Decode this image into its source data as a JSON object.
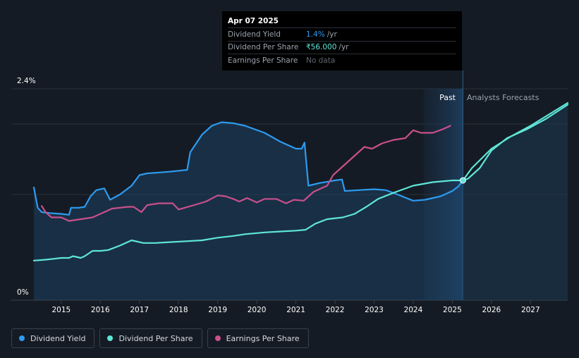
{
  "chart_data": {
    "type": "line",
    "y_axis": {
      "min_label": "0%",
      "max_label": "2.4%",
      "ylim": [
        0,
        2.4
      ]
    },
    "x_axis": {
      "tick_labels": [
        "2015",
        "2016",
        "2017",
        "2018",
        "2019",
        "2020",
        "2021",
        "2022",
        "2023",
        "2024",
        "2025",
        "2026",
        "2027"
      ],
      "xlim": [
        2014.3,
        2027.95
      ]
    },
    "regions": {
      "past_label": "Past",
      "forecast_label": "Analysts Forecasts",
      "divider_x": 2025.27,
      "highlight_start": 2024.27
    },
    "series": [
      {
        "name": "Dividend Yield",
        "color": "#2d9bf0",
        "fill": true,
        "points": [
          [
            2014.3,
            1.28
          ],
          [
            2014.4,
            1.05
          ],
          [
            2014.5,
            1.0
          ],
          [
            2014.7,
            0.99
          ],
          [
            2015.0,
            0.98
          ],
          [
            2015.2,
            0.97
          ],
          [
            2015.25,
            1.05
          ],
          [
            2015.45,
            1.05
          ],
          [
            2015.6,
            1.06
          ],
          [
            2015.75,
            1.18
          ],
          [
            2015.9,
            1.25
          ],
          [
            2016.1,
            1.27
          ],
          [
            2016.25,
            1.14
          ],
          [
            2016.5,
            1.2
          ],
          [
            2016.8,
            1.3
          ],
          [
            2017.0,
            1.42
          ],
          [
            2017.2,
            1.44
          ],
          [
            2017.5,
            1.45
          ],
          [
            2017.8,
            1.46
          ],
          [
            2018.0,
            1.47
          ],
          [
            2018.22,
            1.48
          ],
          [
            2018.3,
            1.68
          ],
          [
            2018.6,
            1.88
          ],
          [
            2018.85,
            1.98
          ],
          [
            2019.1,
            2.02
          ],
          [
            2019.4,
            2.01
          ],
          [
            2019.7,
            1.98
          ],
          [
            2020.2,
            1.9
          ],
          [
            2020.6,
            1.8
          ],
          [
            2021.0,
            1.72
          ],
          [
            2021.15,
            1.72
          ],
          [
            2021.22,
            1.79
          ],
          [
            2021.32,
            1.3
          ],
          [
            2021.6,
            1.33
          ],
          [
            2022.0,
            1.36
          ],
          [
            2022.18,
            1.37
          ],
          [
            2022.25,
            1.24
          ],
          [
            2022.6,
            1.25
          ],
          [
            2023.0,
            1.26
          ],
          [
            2023.3,
            1.25
          ],
          [
            2023.6,
            1.2
          ],
          [
            2024.0,
            1.13
          ],
          [
            2024.3,
            1.14
          ],
          [
            2024.7,
            1.18
          ],
          [
            2025.0,
            1.24
          ],
          [
            2025.15,
            1.29
          ],
          [
            2025.27,
            1.36
          ]
        ]
      },
      {
        "name": "Dividend Per Share",
        "color": "#5ee6d8",
        "fill": false,
        "points": [
          [
            2014.3,
            0.45
          ],
          [
            2014.6,
            0.46
          ],
          [
            2014.8,
            0.47
          ],
          [
            2015.0,
            0.48
          ],
          [
            2015.2,
            0.48
          ],
          [
            2015.3,
            0.5
          ],
          [
            2015.5,
            0.48
          ],
          [
            2015.6,
            0.5
          ],
          [
            2015.8,
            0.56
          ],
          [
            2016.0,
            0.56
          ],
          [
            2016.2,
            0.57
          ],
          [
            2016.5,
            0.62
          ],
          [
            2016.8,
            0.68
          ],
          [
            2017.1,
            0.65
          ],
          [
            2017.4,
            0.65
          ],
          [
            2017.8,
            0.66
          ],
          [
            2018.2,
            0.67
          ],
          [
            2018.6,
            0.68
          ],
          [
            2019.0,
            0.71
          ],
          [
            2019.4,
            0.73
          ],
          [
            2019.7,
            0.75
          ],
          [
            2020.2,
            0.77
          ],
          [
            2020.6,
            0.78
          ],
          [
            2021.0,
            0.79
          ],
          [
            2021.25,
            0.8
          ],
          [
            2021.5,
            0.87
          ],
          [
            2021.8,
            0.92
          ],
          [
            2022.2,
            0.94
          ],
          [
            2022.5,
            0.98
          ],
          [
            2022.8,
            1.06
          ],
          [
            2023.1,
            1.15
          ],
          [
            2023.5,
            1.22
          ],
          [
            2024.0,
            1.3
          ],
          [
            2024.5,
            1.34
          ],
          [
            2025.0,
            1.36
          ],
          [
            2025.27,
            1.36
          ],
          [
            2025.4,
            1.38
          ],
          [
            2025.7,
            1.5
          ],
          [
            2026.0,
            1.7
          ],
          [
            2026.4,
            1.84
          ],
          [
            2026.9,
            1.94
          ],
          [
            2027.4,
            2.06
          ],
          [
            2027.95,
            2.22
          ]
        ]
      },
      {
        "name": "Dividend Per Share (forecast)",
        "color": "#5ee6d8",
        "fill": false,
        "legend": false,
        "points": [
          [
            2025.27,
            1.36
          ],
          [
            2025.5,
            1.5
          ],
          [
            2026.0,
            1.72
          ],
          [
            2026.5,
            1.86
          ],
          [
            2027.0,
            1.98
          ],
          [
            2027.95,
            2.24
          ]
        ]
      },
      {
        "name": "Earnings Per Share",
        "color": "#c8508c",
        "fill": false,
        "points": [
          [
            2014.5,
            1.07
          ],
          [
            2014.6,
            1.0
          ],
          [
            2014.75,
            0.94
          ],
          [
            2015.0,
            0.94
          ],
          [
            2015.2,
            0.9
          ],
          [
            2015.5,
            0.92
          ],
          [
            2015.8,
            0.94
          ],
          [
            2016.0,
            0.98
          ],
          [
            2016.3,
            1.04
          ],
          [
            2016.7,
            1.06
          ],
          [
            2016.85,
            1.06
          ],
          [
            2017.05,
            1.0
          ],
          [
            2017.2,
            1.08
          ],
          [
            2017.5,
            1.1
          ],
          [
            2017.85,
            1.1
          ],
          [
            2018.0,
            1.03
          ],
          [
            2018.4,
            1.08
          ],
          [
            2018.7,
            1.12
          ],
          [
            2019.0,
            1.19
          ],
          [
            2019.2,
            1.18
          ],
          [
            2019.4,
            1.15
          ],
          [
            2019.55,
            1.12
          ],
          [
            2019.75,
            1.16
          ],
          [
            2020.0,
            1.11
          ],
          [
            2020.2,
            1.15
          ],
          [
            2020.5,
            1.15
          ],
          [
            2020.75,
            1.1
          ],
          [
            2020.95,
            1.14
          ],
          [
            2021.2,
            1.13
          ],
          [
            2021.45,
            1.23
          ],
          [
            2021.8,
            1.3
          ],
          [
            2021.95,
            1.42
          ],
          [
            2022.3,
            1.56
          ],
          [
            2022.6,
            1.68
          ],
          [
            2022.75,
            1.74
          ],
          [
            2022.95,
            1.72
          ],
          [
            2023.2,
            1.78
          ],
          [
            2023.5,
            1.82
          ],
          [
            2023.8,
            1.84
          ],
          [
            2024.0,
            1.93
          ],
          [
            2024.2,
            1.9
          ],
          [
            2024.5,
            1.9
          ],
          [
            2024.75,
            1.94
          ],
          [
            2024.95,
            1.98
          ]
        ]
      }
    ],
    "marker": {
      "x": 2025.27,
      "y": 1.36
    }
  },
  "tooltip": {
    "date": "Apr 07 2025",
    "rows": [
      {
        "label": "Dividend Yield",
        "value": "1.4%",
        "unit": "/yr"
      },
      {
        "label": "Dividend Per Share",
        "value": "₹56.000",
        "unit": "/yr"
      },
      {
        "label": "Earnings Per Share",
        "value": "No data",
        "unit": ""
      }
    ]
  },
  "legend": [
    {
      "label": "Dividend Yield",
      "color": "#2d9bf0"
    },
    {
      "label": "Dividend Per Share",
      "color": "#5ee6d8"
    },
    {
      "label": "Earnings Per Share",
      "color": "#c8508c"
    }
  ]
}
